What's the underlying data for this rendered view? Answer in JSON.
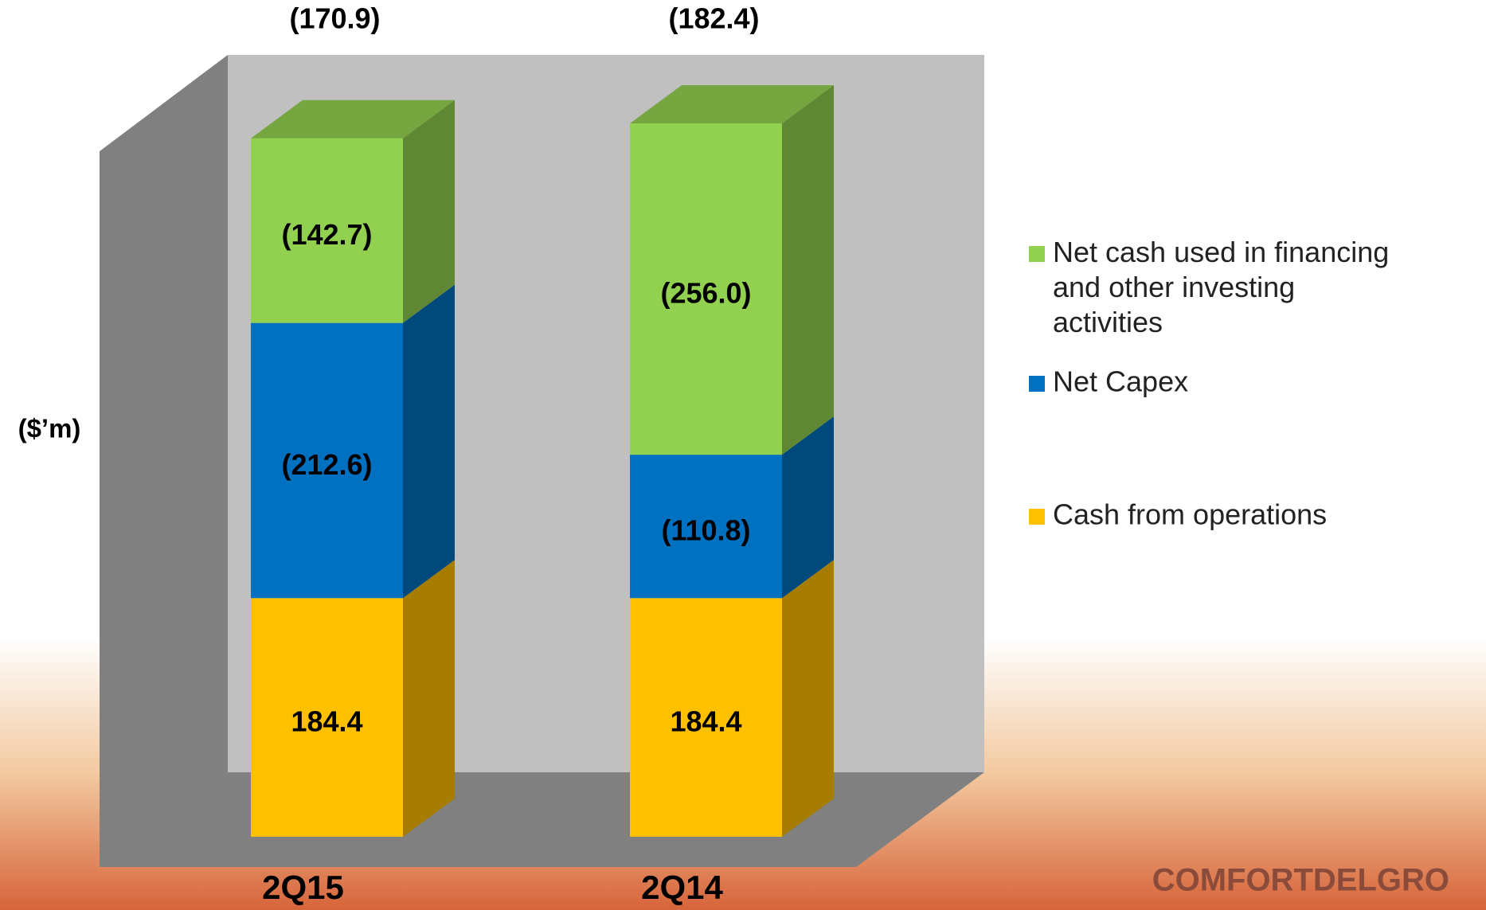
{
  "chart_data": {
    "type": "bar3d-stacked",
    "y_label": "($’m)",
    "categories": [
      "2Q15",
      "2Q14"
    ],
    "series": [
      {
        "name": "Cash from operations",
        "color": "#ffc000",
        "values": [
          184.4,
          184.4
        ]
      },
      {
        "name": "Net Capex",
        "color": "#0070c0",
        "values": [
          -212.6,
          -110.8
        ],
        "value_labels": [
          "(212.6)",
          "(110.8)"
        ]
      },
      {
        "name": "Net cash used in financing and other investing activities",
        "color": "#92d050",
        "values": [
          -142.7,
          -256.0
        ],
        "value_labels": [
          "(142.7)",
          "(256.0)"
        ]
      }
    ],
    "totals": [
      {
        "value": -170.9,
        "label": "(170.9)"
      },
      {
        "value": -182.4,
        "label": "(182.4)"
      }
    ],
    "legend": "right"
  },
  "logo": "COMFORTDELGRO"
}
